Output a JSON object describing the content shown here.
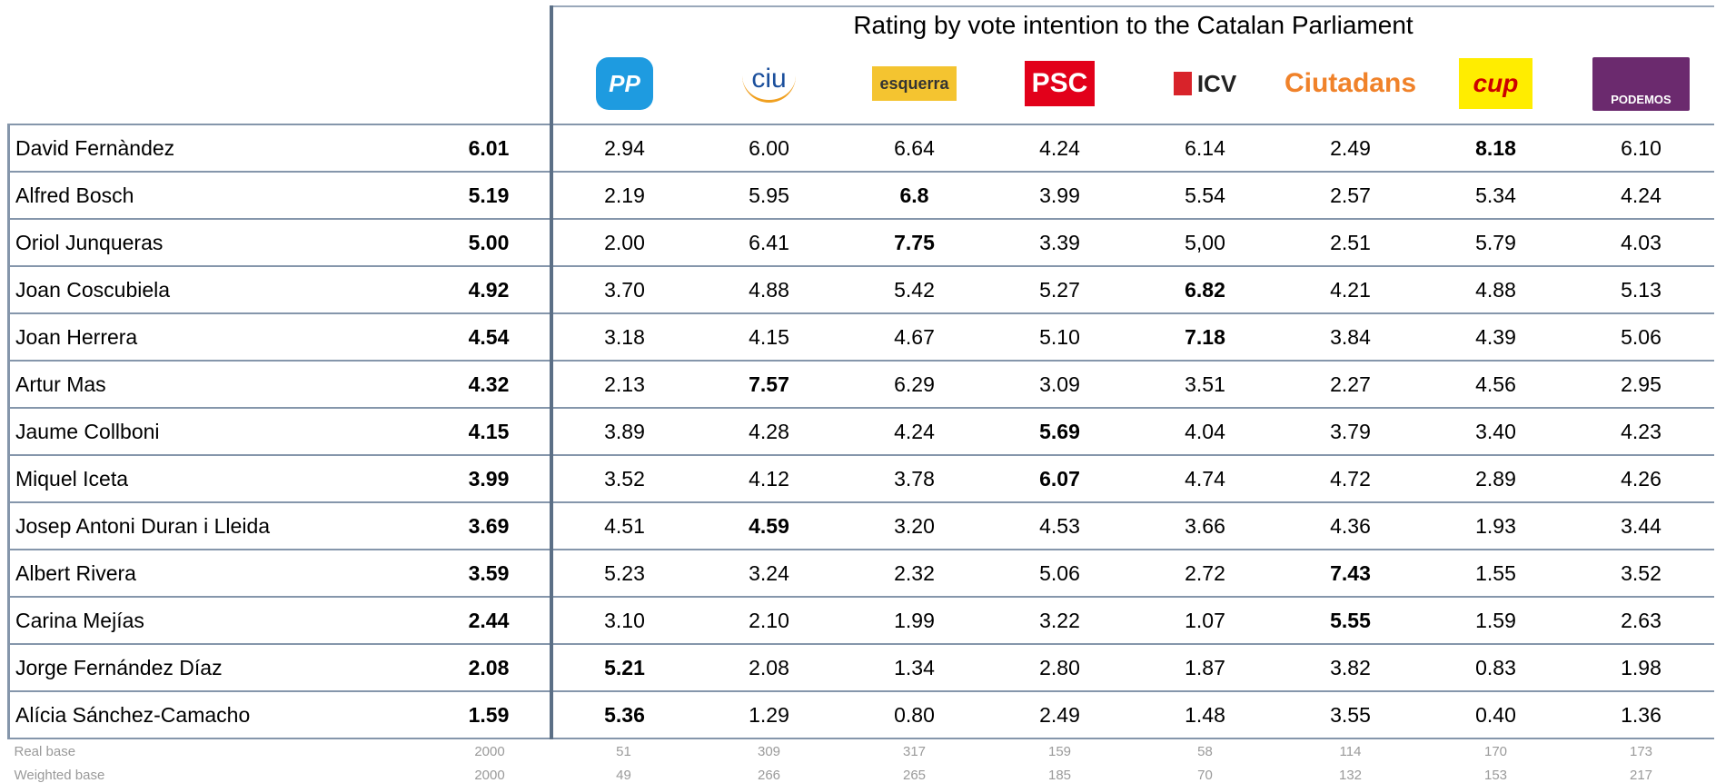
{
  "header": {
    "title": "Rating by vote intention to the Catalan Parliament",
    "parties": [
      "PP",
      "ciu",
      "esquerra",
      "PSC",
      "ICV",
      "Ciutadans",
      "cup",
      "PODEMOS"
    ]
  },
  "table": {
    "rows": [
      {
        "name": "David Fernàndez",
        "overall": "6.01",
        "values": [
          "2.94",
          "6.00",
          "6.64",
          "4.24",
          "6.14",
          "2.49",
          "8.18",
          "6.10"
        ]
      },
      {
        "name": "Alfred Bosch",
        "overall": "5.19",
        "values": [
          "2.19",
          "5.95",
          "6.8",
          "3.99",
          "5.54",
          "2.57",
          "5.34",
          "4.24"
        ]
      },
      {
        "name": "Oriol Junqueras",
        "overall": "5.00",
        "values": [
          "2.00",
          "6.41",
          "7.75",
          "3.39",
          "5,00",
          "2.51",
          "5.79",
          "4.03"
        ]
      },
      {
        "name": "Joan Coscubiela",
        "overall": "4.92",
        "values": [
          "3.70",
          "4.88",
          "5.42",
          "5.27",
          "6.82",
          "4.21",
          "4.88",
          "5.13"
        ]
      },
      {
        "name": "Joan Herrera",
        "overall": "4.54",
        "values": [
          "3.18",
          "4.15",
          "4.67",
          "5.10",
          "7.18",
          "3.84",
          "4.39",
          "5.06"
        ]
      },
      {
        "name": "Artur Mas",
        "overall": "4.32",
        "values": [
          "2.13",
          "7.57",
          "6.29",
          "3.09",
          "3.51",
          "2.27",
          "4.56",
          "2.95"
        ]
      },
      {
        "name": "Jaume Collboni",
        "overall": "4.15",
        "values": [
          "3.89",
          "4.28",
          "4.24",
          "5.69",
          "4.04",
          "3.79",
          "3.40",
          "4.23"
        ]
      },
      {
        "name": "Miquel Iceta",
        "overall": "3.99",
        "values": [
          "3.52",
          "4.12",
          "3.78",
          "6.07",
          "4.74",
          "4.72",
          "2.89",
          "4.26"
        ]
      },
      {
        "name": "Josep Antoni Duran i Lleida",
        "overall": "3.69",
        "values": [
          "4.51",
          "4.59",
          "3.20",
          "4.53",
          "3.66",
          "4.36",
          "1.93",
          "3.44"
        ]
      },
      {
        "name": "Albert Rivera",
        "overall": "3.59",
        "values": [
          "5.23",
          "3.24",
          "2.32",
          "5.06",
          "2.72",
          "7.43",
          "1.55",
          "3.52"
        ]
      },
      {
        "name": "Carina Mejías",
        "overall": "2.44",
        "values": [
          "3.10",
          "2.10",
          "1.99",
          "3.22",
          "1.07",
          "5.55",
          "1.59",
          "2.63"
        ]
      },
      {
        "name": "Jorge Fernández Díaz",
        "overall": "2.08",
        "values": [
          "5.21",
          "2.08",
          "1.34",
          "2.80",
          "1.87",
          "3.82",
          "0.83",
          "1.98"
        ]
      },
      {
        "name": "Alícia Sánchez-Camacho",
        "overall": "1.59",
        "values": [
          "5.36",
          "1.29",
          "0.80",
          "2.49",
          "1.48",
          "3.55",
          "0.40",
          "1.36"
        ]
      }
    ],
    "footer": [
      {
        "label": "Real base",
        "values": [
          2000,
          51,
          309,
          317,
          159,
          58,
          114,
          170,
          173
        ]
      },
      {
        "label": "Weighted base",
        "values": [
          2000,
          49,
          266,
          265,
          185,
          70,
          132,
          153,
          217
        ]
      }
    ]
  }
}
